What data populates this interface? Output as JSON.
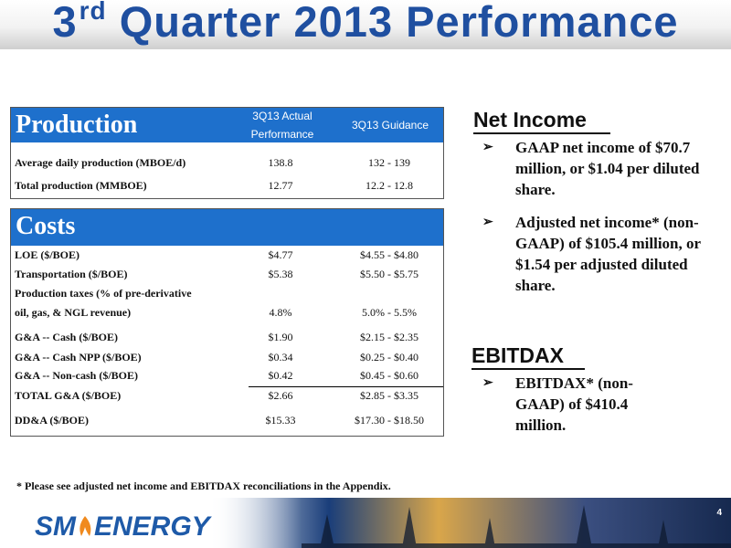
{
  "slide": {
    "title_prefix": "3",
    "title_sup": "rd",
    "title_main": "Quarter  2013 Performance",
    "page_number": "4",
    "footnote": "* Please see adjusted net income and EBITDAX reconciliations in the Appendix."
  },
  "production": {
    "header": "Production",
    "col1_header_line1": "3Q13 Actual",
    "col1_header_line2": "Performance",
    "col2_header": "3Q13 Guidance",
    "rows": [
      {
        "label": "Average daily production (MBOE/d)",
        "actual": "138.8",
        "guidance": "132 - 139"
      },
      {
        "label": "Total production (MMBOE)",
        "actual": "12.77",
        "guidance": "12.2 - 12.8"
      }
    ]
  },
  "costs": {
    "header": "Costs",
    "rows": [
      {
        "label": "LOE ($/BOE)",
        "actual": "$4.77",
        "guidance": "$4.55 - $4.80"
      },
      {
        "label": "Transportation ($/BOE)",
        "actual": "$5.38",
        "guidance": "$5.50 - $5.75"
      },
      {
        "label": "Production taxes (% of pre-derivative",
        "actual": "",
        "guidance": ""
      },
      {
        "label": "oil, gas, & NGL revenue)",
        "actual": "4.8%",
        "guidance": "5.0% - 5.5%"
      },
      {
        "label": "G&A -- Cash ($/BOE)",
        "actual": "$1.90",
        "guidance": "$2.15 - $2.35"
      },
      {
        "label": "G&A -- Cash NPP ($/BOE)",
        "actual": "$0.34",
        "guidance": "$0.25 - $0.40"
      },
      {
        "label": "G&A -- Non-cash ($/BOE)",
        "actual": "$0.42",
        "guidance": "$0.45 - $0.60"
      },
      {
        "label": "TOTAL G&A ($/BOE)",
        "actual": "$2.66",
        "guidance": "$2.85 - $3.35"
      },
      {
        "label": "DD&A ($/BOE)",
        "actual": "$15.33",
        "guidance": "$17.30 - $18.50"
      }
    ]
  },
  "net_income": {
    "title": "Net Income",
    "bullets": [
      "GAAP net income of $70.7 million, or $1.04 per diluted share.",
      "Adjusted net income* (non-GAAP) of $105.4 million, or $1.54 per adjusted diluted share."
    ]
  },
  "ebitdax": {
    "title": "EBITDAX",
    "bullets": [
      "EBITDAX* (non-GAAP) of $410.4 million."
    ]
  },
  "logo": {
    "left": "SM",
    "right": "ENERGY"
  },
  "colors": {
    "title_blue": "#1f4fa0",
    "header_blue": "#1e70cc"
  }
}
